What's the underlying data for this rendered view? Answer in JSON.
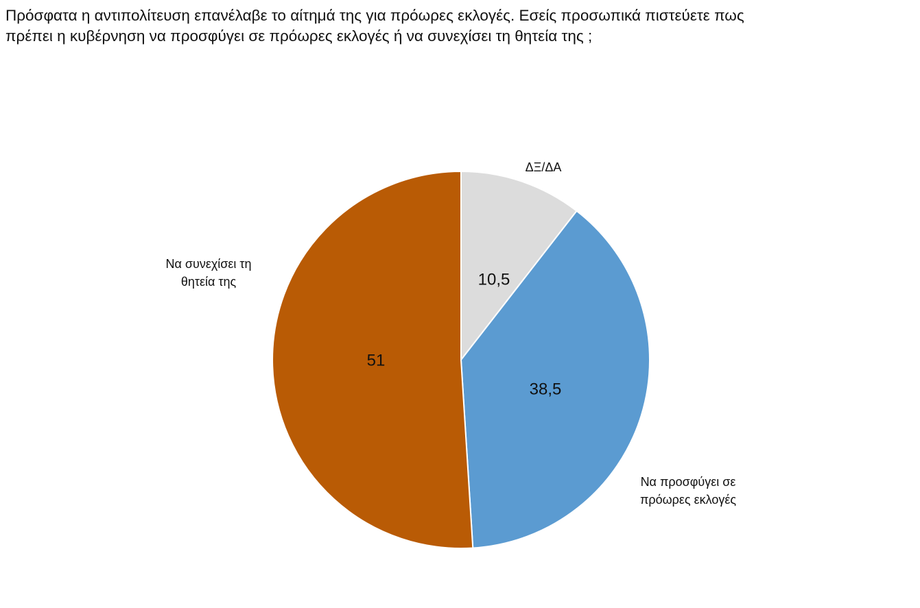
{
  "chart_data": {
    "type": "pie",
    "title_lines": [
      "Πρόσφατα η αντιπολίτευση επανέλαβε το αίτημά της για πρόωρες εκλογές. Εσείς προσωπικά πιστεύετε πως",
      "πρέπει η κυβέρνηση να προσφύγει σε πρόωρες εκλογές ή να συνεχίσει τη θητεία της ;"
    ],
    "slices": [
      {
        "label_lines": [
          "ΔΞ/ΔΑ"
        ],
        "value": 10.5,
        "value_label": "10,5",
        "color": "#dcdcdc"
      },
      {
        "label_lines": [
          "Να προσφύγει  σε",
          "πρόωρες εκλογές"
        ],
        "value": 38.5,
        "value_label": "38,5",
        "color": "#5b9bd1"
      },
      {
        "label_lines": [
          "Να συνεχίσει τη",
          "θητεία της"
        ],
        "value": 51,
        "value_label": "51",
        "color": "#b95b05"
      }
    ],
    "start": "12 o'clock",
    "direction": "clockwise",
    "legend": "none"
  }
}
